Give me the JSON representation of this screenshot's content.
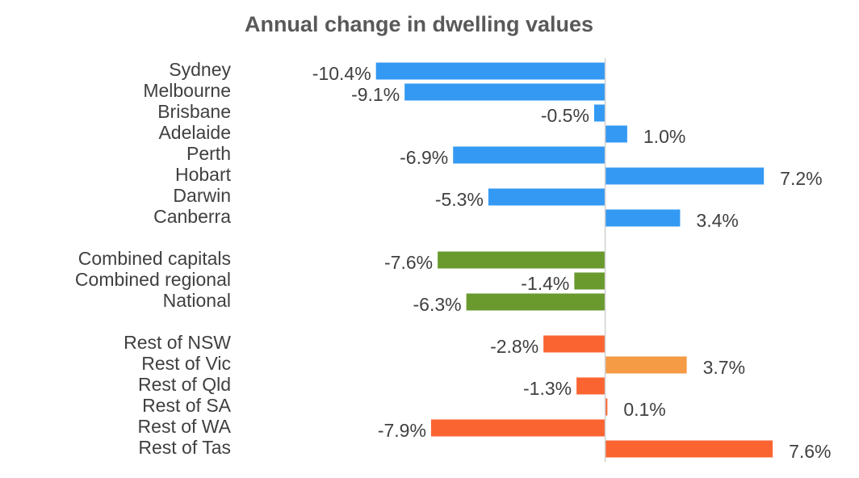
{
  "chart_data": {
    "type": "hbar",
    "title": "Annual change in dwelling values",
    "categories": [
      "Sydney",
      "Melbourne",
      "Brisbane",
      "Adelaide",
      "Perth",
      "Hobart",
      "Darwin",
      "Canberra",
      null,
      "Combined capitals",
      "Combined regional",
      "National",
      null,
      "Rest of NSW",
      "Rest of Vic",
      "Rest of Qld",
      "Rest of SA",
      "Rest of WA",
      "Rest of Tas"
    ],
    "values": [
      -10.4,
      -9.1,
      -0.5,
      1.0,
      -6.9,
      7.2,
      -5.3,
      3.4,
      null,
      -7.6,
      -1.4,
      -6.3,
      null,
      -2.8,
      3.7,
      -1.3,
      0.1,
      -7.9,
      7.6
    ],
    "value_labels": [
      "-10.4%",
      "-9.1%",
      "-0.5%",
      "1.0%",
      "-6.9%",
      "7.2%",
      "-5.3%",
      "3.4%",
      null,
      "-7.6%",
      "-1.4%",
      "-6.3%",
      null,
      "-2.8%",
      "3.7%",
      "-1.3%",
      "0.1%",
      "-7.9%",
      "7.6%"
    ],
    "colors": [
      "#3399f3",
      "#3399f3",
      "#3399f3",
      "#3399f3",
      "#3399f3",
      "#3399f3",
      "#3399f3",
      "#3399f3",
      null,
      "#6a9a2e",
      "#6a9a2e",
      "#6a9a2e",
      null,
      "#fa6431",
      "#f59a45",
      "#fa6431",
      "#fa6431",
      "#fa6431",
      "#fa6431"
    ],
    "xlim": [
      -12,
      10
    ]
  }
}
